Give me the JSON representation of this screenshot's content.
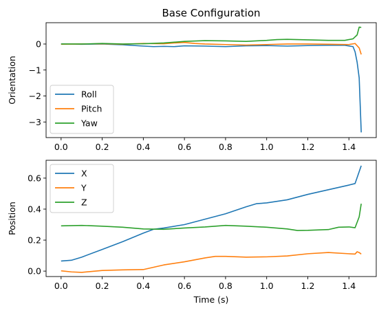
{
  "chart_data": [
    {
      "type": "line",
      "title": "Base Configuration",
      "xlabel": "",
      "ylabel": "Orientation",
      "xlim": [
        -0.073,
        1.533
      ],
      "ylim": [
        -3.6,
        0.82
      ],
      "xticks": [
        0.0,
        0.2,
        0.4,
        0.6,
        0.8,
        1.0,
        1.2,
        1.4
      ],
      "xtick_labels": [
        "0.0",
        "0.2",
        "0.4",
        "0.6",
        "0.8",
        "1.0",
        "1.2",
        "1.4"
      ],
      "yticks": [
        -3,
        -2,
        -1,
        0
      ],
      "ytick_labels": [
        "−3",
        "−2",
        "−1",
        "0"
      ],
      "grid": false,
      "legend": "lower-left",
      "series": [
        {
          "name": "Roll",
          "color": "#1f77b4",
          "x": [
            0.0,
            0.1,
            0.2,
            0.3,
            0.4,
            0.45,
            0.5,
            0.55,
            0.6,
            0.7,
            0.8,
            0.9,
            1.0,
            1.1,
            1.2,
            1.3,
            1.38,
            1.42,
            1.43,
            1.44,
            1.45,
            1.46
          ],
          "y": [
            0.0,
            -0.01,
            0.0,
            -0.03,
            -0.08,
            -0.1,
            -0.09,
            -0.1,
            -0.07,
            -0.08,
            -0.1,
            -0.07,
            -0.06,
            -0.08,
            -0.06,
            -0.05,
            -0.05,
            -0.1,
            -0.3,
            -0.7,
            -1.3,
            -3.4
          ]
        },
        {
          "name": "Pitch",
          "color": "#ff7f0e",
          "x": [
            0.0,
            0.1,
            0.2,
            0.3,
            0.4,
            0.5,
            0.55,
            0.6,
            0.65,
            0.7,
            0.8,
            0.9,
            1.0,
            1.1,
            1.2,
            1.3,
            1.4,
            1.43,
            1.45,
            1.46
          ],
          "y": [
            -0.01,
            0.0,
            0.01,
            -0.01,
            0.02,
            0.01,
            0.04,
            0.06,
            0.02,
            0.0,
            -0.02,
            -0.04,
            -0.02,
            0.0,
            0.0,
            -0.01,
            -0.02,
            0.02,
            -0.15,
            -0.4
          ]
        },
        {
          "name": "Yaw",
          "color": "#2ca02c",
          "x": [
            0.0,
            0.1,
            0.2,
            0.3,
            0.4,
            0.5,
            0.6,
            0.7,
            0.8,
            0.9,
            1.0,
            1.05,
            1.1,
            1.2,
            1.3,
            1.38,
            1.42,
            1.44,
            1.45,
            1.46
          ],
          "y": [
            0.0,
            0.0,
            0.02,
            0.0,
            0.01,
            0.04,
            0.1,
            0.13,
            0.12,
            0.1,
            0.14,
            0.17,
            0.18,
            0.16,
            0.14,
            0.14,
            0.2,
            0.35,
            0.65,
            0.64
          ]
        }
      ]
    },
    {
      "type": "line",
      "title": "",
      "xlabel": "Time (s)",
      "ylabel": "Position",
      "xlim": [
        -0.073,
        1.533
      ],
      "ylim": [
        -0.035,
        0.715
      ],
      "xticks": [
        0.0,
        0.2,
        0.4,
        0.6,
        0.8,
        1.0,
        1.2,
        1.4
      ],
      "xtick_labels": [
        "0.0",
        "0.2",
        "0.4",
        "0.6",
        "0.8",
        "1.0",
        "1.2",
        "1.4"
      ],
      "yticks": [
        0.0,
        0.2,
        0.4,
        0.6
      ],
      "ytick_labels": [
        "0.0",
        "0.2",
        "0.4",
        "0.6"
      ],
      "grid": false,
      "legend": "upper-left",
      "series": [
        {
          "name": "X",
          "color": "#1f77b4",
          "x": [
            0.0,
            0.05,
            0.1,
            0.2,
            0.3,
            0.4,
            0.45,
            0.5,
            0.6,
            0.7,
            0.8,
            0.9,
            0.95,
            1.0,
            1.1,
            1.2,
            1.3,
            1.4,
            1.43,
            1.46
          ],
          "y": [
            0.065,
            0.07,
            0.09,
            0.14,
            0.19,
            0.245,
            0.27,
            0.278,
            0.3,
            0.335,
            0.37,
            0.415,
            0.435,
            0.44,
            0.46,
            0.495,
            0.525,
            0.555,
            0.565,
            0.68
          ]
        },
        {
          "name": "Y",
          "color": "#ff7f0e",
          "x": [
            0.0,
            0.05,
            0.1,
            0.15,
            0.2,
            0.3,
            0.4,
            0.45,
            0.5,
            0.6,
            0.7,
            0.75,
            0.8,
            0.9,
            1.0,
            1.1,
            1.2,
            1.3,
            1.4,
            1.43,
            1.44,
            1.45,
            1.46
          ],
          "y": [
            0.002,
            -0.005,
            -0.008,
            -0.002,
            0.004,
            0.008,
            0.01,
            0.025,
            0.04,
            0.06,
            0.085,
            0.095,
            0.095,
            0.09,
            0.092,
            0.098,
            0.112,
            0.12,
            0.112,
            0.11,
            0.125,
            0.12,
            0.11
          ]
        },
        {
          "name": "Z",
          "color": "#2ca02c",
          "x": [
            0.0,
            0.1,
            0.2,
            0.3,
            0.4,
            0.5,
            0.6,
            0.7,
            0.8,
            0.9,
            1.0,
            1.1,
            1.15,
            1.2,
            1.3,
            1.35,
            1.4,
            1.43,
            1.45,
            1.46
          ],
          "y": [
            0.292,
            0.295,
            0.29,
            0.283,
            0.272,
            0.27,
            0.278,
            0.285,
            0.295,
            0.29,
            0.283,
            0.272,
            0.262,
            0.263,
            0.268,
            0.283,
            0.285,
            0.28,
            0.35,
            0.435
          ]
        }
      ]
    }
  ]
}
